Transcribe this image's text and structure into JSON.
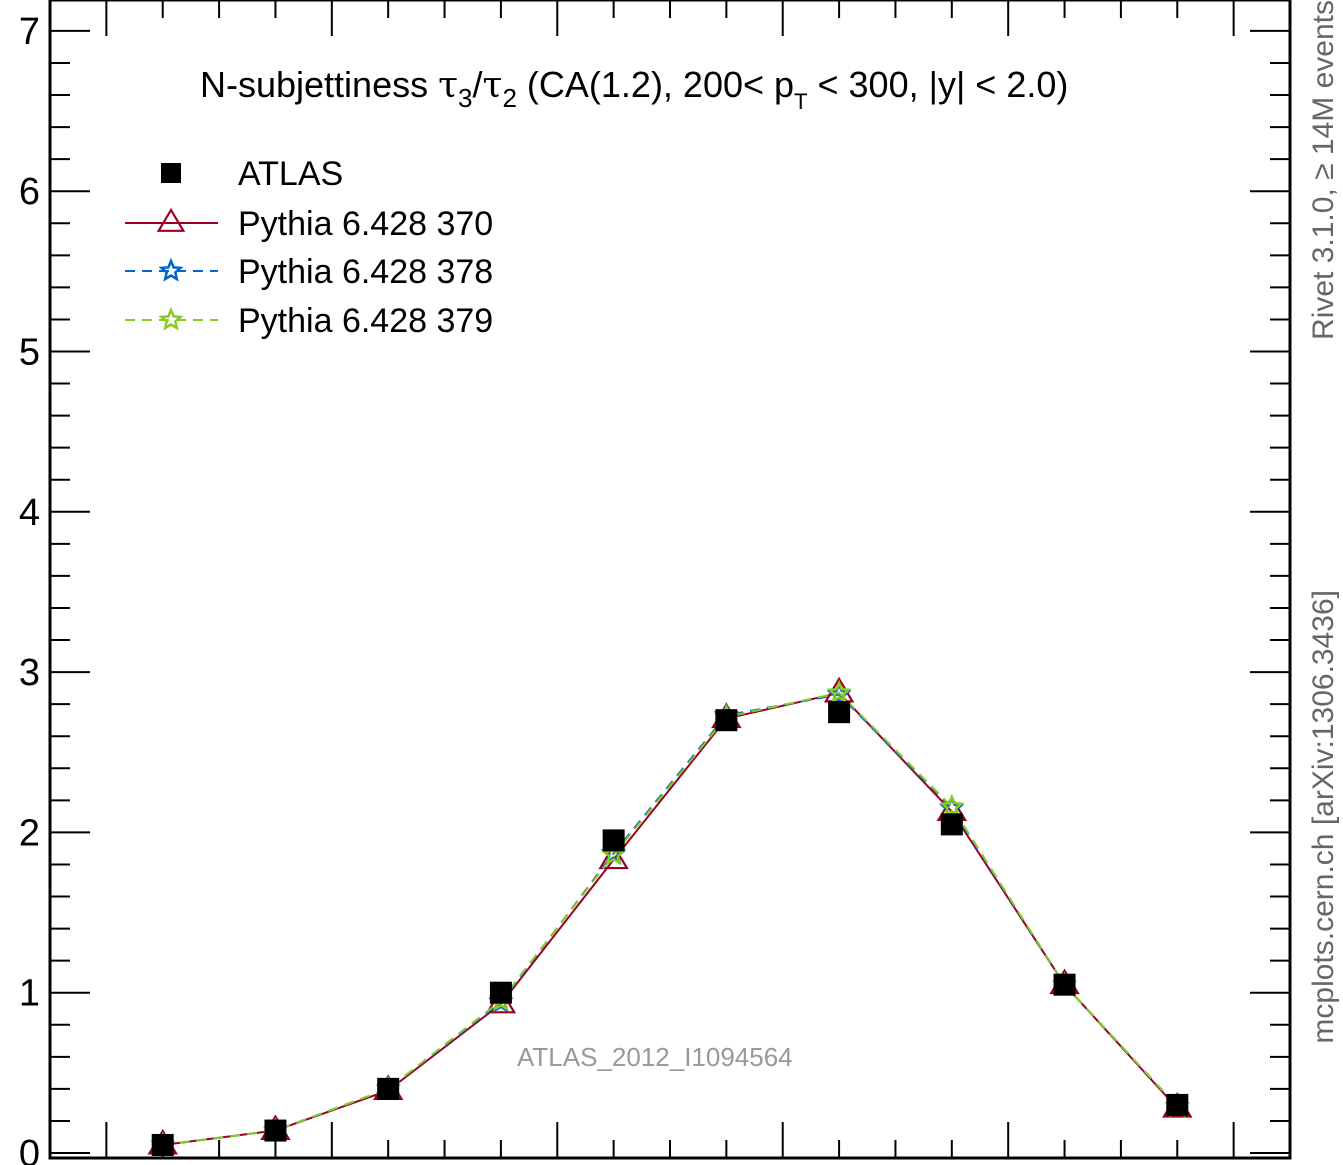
{
  "chart_data": {
    "type": "line",
    "title": {
      "prefix": "N-subjettiness ",
      "tau": "τ",
      "sub3": "3",
      "slash": "/",
      "sub2": "2",
      "mid": " (CA(1.2), 200< p",
      "subT": "T",
      "suffix": " < 300, |y| < 2.0)"
    },
    "xlabel": "",
    "ylabel": "",
    "xlim": [
      -0.05,
      1.05
    ],
    "ylim": [
      0,
      7
    ],
    "y_ticks": [
      "0",
      "1",
      "2",
      "3",
      "4",
      "5",
      "6",
      "7"
    ],
    "series": [
      {
        "name": "ATLAS",
        "style": "data-points",
        "marker": "square",
        "color": "#000000",
        "x": [
          0.05,
          0.15,
          0.25,
          0.35,
          0.45,
          0.55,
          0.65,
          0.75,
          0.85,
          0.95
        ],
        "values": [
          0.05,
          0.14,
          0.4,
          1.0,
          1.95,
          2.7,
          2.75,
          2.05,
          1.05,
          0.3
        ]
      },
      {
        "name": "Pythia 6.428 370",
        "style": "solid",
        "marker": "open-triangle",
        "color": "#990022",
        "x": [
          0.05,
          0.15,
          0.25,
          0.35,
          0.45,
          0.55,
          0.65,
          0.75,
          0.85,
          0.95
        ],
        "values": [
          0.05,
          0.14,
          0.39,
          0.93,
          1.83,
          2.71,
          2.87,
          2.13,
          1.05,
          0.28
        ]
      },
      {
        "name": "Pythia 6.428 378",
        "style": "dashed",
        "marker": "star",
        "color": "#0066cc",
        "x": [
          0.05,
          0.15,
          0.25,
          0.35,
          0.45,
          0.55,
          0.65,
          0.75,
          0.85,
          0.95
        ],
        "values": [
          0.05,
          0.14,
          0.4,
          0.94,
          1.87,
          2.73,
          2.86,
          2.15,
          1.05,
          0.29
        ]
      },
      {
        "name": "Pythia 6.428 379",
        "style": "dashed",
        "marker": "star",
        "color": "#88cc22",
        "x": [
          0.05,
          0.15,
          0.25,
          0.35,
          0.45,
          0.55,
          0.65,
          0.75,
          0.85,
          0.95
        ],
        "values": [
          0.05,
          0.14,
          0.4,
          0.95,
          1.86,
          2.72,
          2.87,
          2.16,
          1.05,
          0.29
        ]
      }
    ],
    "legend_position": "top-left",
    "annotation": "ATLAS_2012_I1094564",
    "side_text": {
      "upper": "Rivet 3.1.0, ≥ 14M events",
      "lower": "mcplots.cern.ch [arXiv:1306.3436]"
    },
    "side_text_color": "#666666",
    "annotation_color": "#999999"
  }
}
